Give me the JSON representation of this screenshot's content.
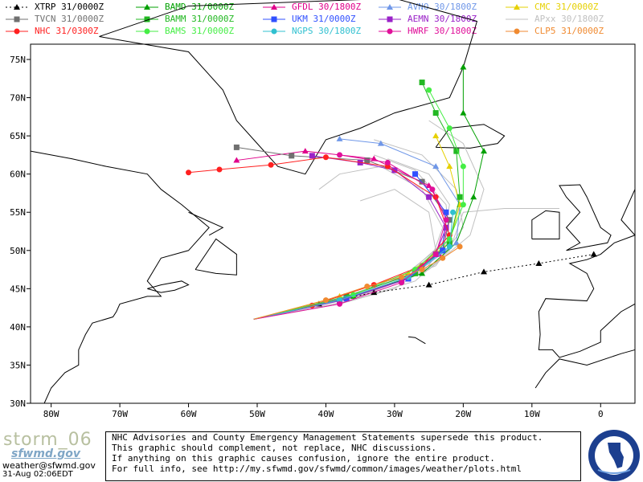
{
  "legend": [
    {
      "name": "XTRP 31/0000Z",
      "color": "#000000",
      "marker": "triangle",
      "dash": true
    },
    {
      "name": "BAMD 31/0000Z",
      "color": "#00a000",
      "marker": "triangle"
    },
    {
      "name": "GFDL 30/1800Z",
      "color": "#e0008a",
      "marker": "triangle"
    },
    {
      "name": "AVNO 30/1800Z",
      "color": "#6f97e8",
      "marker": "triangle"
    },
    {
      "name": "CMC 31/0000Z",
      "color": "#e6d000",
      "marker": "triangle"
    },
    {
      "name": "TVCN 31/0000Z",
      "color": "#707070",
      "marker": "square"
    },
    {
      "name": "BAMM 31/0000Z",
      "color": "#22b822",
      "marker": "square"
    },
    {
      "name": "UKM 31/0000Z",
      "color": "#3050ff",
      "marker": "square"
    },
    {
      "name": "AEMN 30/1800Z",
      "color": "#9a22c8",
      "marker": "square"
    },
    {
      "name": "APxx 30/1800Z",
      "color": "#c0c0c0",
      "marker": "none"
    },
    {
      "name": "NHC 31/0300Z",
      "color": "#ff2020",
      "marker": "circle"
    },
    {
      "name": "BAMS 31/0000Z",
      "color": "#44ee44",
      "marker": "circle"
    },
    {
      "name": "NGPS 30/1800Z",
      "color": "#30c0d0",
      "marker": "circle"
    },
    {
      "name": "HWRF 30/1800Z",
      "color": "#e0109a",
      "marker": "circle"
    },
    {
      "name": "CLP5 31/0000Z",
      "color": "#f08a30",
      "marker": "circle"
    }
  ],
  "chart_data": {
    "type": "line",
    "xlabel": "",
    "ylabel": "",
    "xlim": [
      -83,
      5
    ],
    "ylim": [
      30,
      77
    ],
    "x_ticks": [
      "80W",
      "70W",
      "60W",
      "50W",
      "40W",
      "30W",
      "20W",
      "10W",
      "0"
    ],
    "x_tick_values": [
      -80,
      -70,
      -60,
      -50,
      -40,
      -30,
      -20,
      -10,
      0
    ],
    "y_ticks": [
      "30N",
      "35N",
      "40N",
      "45N",
      "50N",
      "55N",
      "60N",
      "65N",
      "70N",
      "75N"
    ],
    "y_tick_values": [
      30,
      35,
      40,
      45,
      50,
      55,
      60,
      65,
      70,
      75
    ],
    "grid": false,
    "series": [
      {
        "name": "XTRP 31/0000Z",
        "points": [
          [
            -50.5,
            41.0
          ],
          [
            -41,
            43
          ],
          [
            -33,
            44.5
          ],
          [
            -25,
            45.5
          ],
          [
            -17,
            47.2
          ],
          [
            -9,
            48.3
          ],
          [
            -1,
            49.5
          ]
        ]
      },
      {
        "name": "BAMD 31/0000Z",
        "points": [
          [
            -50.5,
            41.0
          ],
          [
            -36,
            44
          ],
          [
            -26,
            47
          ],
          [
            -21,
            51
          ],
          [
            -18.5,
            57
          ],
          [
            -17,
            63
          ],
          [
            -20,
            68
          ],
          [
            -20,
            74
          ]
        ]
      },
      {
        "name": "GFDL 30/1800Z",
        "points": [
          [
            -50.5,
            41.0
          ],
          [
            -38,
            43.6
          ],
          [
            -29,
            46
          ],
          [
            -23.5,
            49.5
          ],
          [
            -22,
            54
          ],
          [
            -25,
            58.5
          ],
          [
            -33,
            62
          ],
          [
            -43,
            63
          ],
          [
            -53,
            61.8
          ]
        ]
      },
      {
        "name": "AVNO 30/1800Z",
        "points": [
          [
            -50.5,
            41.0
          ],
          [
            -37,
            44
          ],
          [
            -27,
            47
          ],
          [
            -21,
            51
          ],
          [
            -20.5,
            56
          ],
          [
            -24,
            61
          ],
          [
            -32,
            64
          ],
          [
            -38,
            64.6
          ]
        ]
      },
      {
        "name": "CMC 31/0000Z",
        "points": [
          [
            -50.5,
            41.0
          ],
          [
            -38,
            44
          ],
          [
            -28,
            47
          ],
          [
            -22,
            51
          ],
          [
            -20.5,
            56
          ],
          [
            -22,
            61
          ],
          [
            -24,
            65
          ]
        ]
      },
      {
        "name": "TVCN 31/0000Z",
        "points": [
          [
            -50.5,
            41.0
          ],
          [
            -37,
            43.8
          ],
          [
            -28,
            46.5
          ],
          [
            -23,
            50
          ],
          [
            -22,
            54
          ],
          [
            -26,
            59
          ],
          [
            -34,
            61.8
          ],
          [
            -45,
            62.4
          ],
          [
            -53,
            63.5
          ]
        ]
      },
      {
        "name": "BAMM 31/0000Z",
        "points": [
          [
            -50.5,
            41.0
          ],
          [
            -37,
            44
          ],
          [
            -27,
            47
          ],
          [
            -22,
            51
          ],
          [
            -20.5,
            57
          ],
          [
            -21,
            63
          ],
          [
            -24,
            68
          ],
          [
            -26,
            72
          ]
        ]
      },
      {
        "name": "UKM 31/0000Z",
        "points": [
          [
            -50.5,
            41.0
          ],
          [
            -37,
            43.7
          ],
          [
            -28,
            46.3
          ],
          [
            -23,
            50
          ],
          [
            -22.5,
            55
          ],
          [
            -27,
            60
          ]
        ]
      },
      {
        "name": "AEMN 30/1800Z",
        "points": [
          [
            -50.5,
            41.0
          ],
          [
            -38,
            43.4
          ],
          [
            -29,
            46
          ],
          [
            -24,
            49.5
          ],
          [
            -22.5,
            53
          ],
          [
            -25,
            57
          ],
          [
            -30,
            60.5
          ],
          [
            -35,
            61.5
          ],
          [
            -42,
            62.4
          ]
        ]
      },
      {
        "name": "NHC 31/0300Z",
        "points": [
          [
            -50.5,
            41.0
          ],
          [
            -42,
            42.8
          ],
          [
            -33,
            45.5
          ],
          [
            -26,
            48
          ],
          [
            -22,
            52
          ],
          [
            -24,
            57
          ],
          [
            -31,
            61
          ],
          [
            -40,
            62.2
          ],
          [
            -48,
            61.2
          ],
          [
            -55.5,
            60.6
          ],
          [
            -60,
            60.2
          ]
        ]
      },
      {
        "name": "BAMS 31/0000Z",
        "points": [
          [
            -50.5,
            41.0
          ],
          [
            -36,
            44.2
          ],
          [
            -27,
            47.5
          ],
          [
            -22,
            51.5
          ],
          [
            -20,
            56
          ],
          [
            -20,
            61
          ],
          [
            -22,
            66
          ],
          [
            -25,
            71
          ]
        ]
      },
      {
        "name": "NGPS 30/1800Z",
        "points": [
          [
            -50.5,
            41.0
          ],
          [
            -38,
            43.5
          ],
          [
            -28,
            46.5
          ],
          [
            -22,
            50.5
          ],
          [
            -21.5,
            55
          ]
        ]
      },
      {
        "name": "HWRF 30/1800Z",
        "points": [
          [
            -50.5,
            41.0
          ],
          [
            -38,
            43
          ],
          [
            -29,
            45.8
          ],
          [
            -24,
            49.5
          ],
          [
            -22.5,
            54
          ],
          [
            -24.5,
            58
          ],
          [
            -31,
            61.5
          ],
          [
            -38,
            62.5
          ]
        ]
      },
      {
        "name": "CLP5 31/0000Z",
        "points": [
          [
            -50.5,
            41.0
          ],
          [
            -40,
            43.5
          ],
          [
            -34,
            45.3
          ],
          [
            -29,
            46.5
          ],
          [
            -26,
            47.5
          ],
          [
            -23,
            49
          ],
          [
            -20.5,
            50.5
          ]
        ]
      },
      {
        "name": "APxx 30/1800Z",
        "points": [
          [
            -50.5,
            41.0
          ],
          [
            -36,
            43.8
          ],
          [
            -26,
            47
          ],
          [
            -22,
            51.5
          ],
          [
            -22.5,
            56
          ],
          [
            -27,
            60.5
          ],
          [
            -33,
            62.5
          ]
        ]
      },
      {
        "name": "APxx 30/1800Z",
        "points": [
          [
            -50.5,
            41.0
          ],
          [
            -34,
            44.5
          ],
          [
            -24,
            48
          ],
          [
            -20,
            53
          ],
          [
            -21,
            58
          ],
          [
            -26,
            62.5
          ],
          [
            -33,
            64.5
          ]
        ]
      },
      {
        "name": "APxx 30/1800Z",
        "points": [
          [
            -50.5,
            41.0
          ],
          [
            -38,
            43
          ],
          [
            -30,
            45
          ],
          [
            -25,
            48
          ],
          [
            -23,
            53
          ],
          [
            -26,
            58
          ],
          [
            -32,
            61
          ],
          [
            -38,
            60
          ],
          [
            -41,
            58
          ]
        ]
      },
      {
        "name": "APxx 30/1800Z",
        "points": [
          [
            -50.5,
            41.0
          ],
          [
            -36,
            43.5
          ],
          [
            -27,
            46
          ],
          [
            -22,
            50
          ],
          [
            -20,
            55
          ],
          [
            -14,
            55.5
          ],
          [
            -6,
            55.5
          ]
        ]
      },
      {
        "name": "APxx 30/1800Z",
        "points": [
          [
            -50.5,
            41.0
          ],
          [
            -38,
            43.5
          ],
          [
            -29,
            46.5
          ],
          [
            -24,
            50
          ],
          [
            -25,
            55
          ],
          [
            -30,
            58
          ],
          [
            -35,
            56.5
          ]
        ]
      },
      {
        "name": "APxx 30/1800Z",
        "points": [
          [
            -50.5,
            41.0
          ],
          [
            -35,
            44
          ],
          [
            -25,
            47.5
          ],
          [
            -19,
            52
          ],
          [
            -17,
            58
          ],
          [
            -20,
            64
          ],
          [
            -25,
            67
          ]
        ]
      },
      {
        "name": "APxx 30/1800Z",
        "points": [
          [
            -50.5,
            41.0
          ],
          [
            -37,
            44
          ],
          [
            -28,
            47
          ],
          [
            -23,
            51
          ],
          [
            -22,
            56
          ],
          [
            -25,
            60
          ],
          [
            -31,
            62
          ]
        ]
      }
    ]
  },
  "footer": {
    "brand": "storm_06",
    "brand_sub": "sfwmd.gov",
    "email": "weather@sfwmd.gov",
    "timestamp": "31-Aug 02:06EDT",
    "disclaimer": [
      "NHC Advisories and County Emergency Management Statements supersede this product.",
      "This graphic should complement, not replace, NHC discussions.",
      "If anything on this graphic causes confusion, ignore the entire product.",
      "For full info, see  http://my.sfwmd.gov/sfwmd/common/images/weather/plots.html"
    ]
  }
}
